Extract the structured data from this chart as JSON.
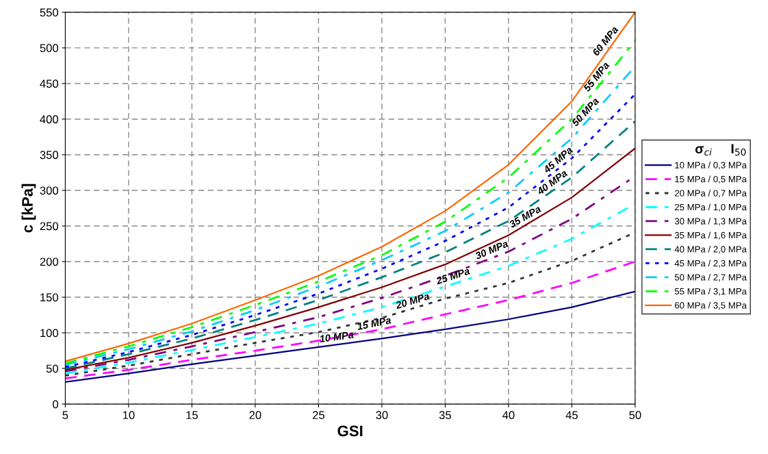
{
  "chart_data": {
    "type": "line",
    "xlabel": "GSI",
    "ylabel": "c [kPa]",
    "legend_title": "σ$_{ci}$     I$_{50}$",
    "x": [
      5,
      10,
      15,
      20,
      25,
      30,
      35,
      40,
      45,
      50
    ],
    "xlim": [
      5,
      50
    ],
    "xticks": [
      5,
      10,
      15,
      20,
      25,
      30,
      35,
      40,
      45,
      50
    ],
    "ylim": [
      0,
      550
    ],
    "yticks": [
      0,
      50,
      100,
      150,
      200,
      250,
      300,
      350,
      400,
      450,
      500,
      550
    ],
    "grid": true,
    "legend": "right",
    "marker": "none",
    "series": [
      {
        "name": "10 MPa / 0,3 MPa",
        "color": "#000080",
        "line_style": "solid",
        "values": [
          31,
          43,
          56,
          68,
          80,
          92,
          105,
          119,
          136,
          158
        ]
      },
      {
        "name": "15 MPa / 0,5 MPa",
        "color": "#ff00ff",
        "line_style": "dashed",
        "values": [
          36,
          48,
          62,
          75,
          89,
          105,
          126,
          146,
          170,
          200
        ]
      },
      {
        "name": "20 MPa / 0,7 MPa",
        "color": "#333333",
        "line_style": "dotted",
        "values": [
          40,
          54,
          70,
          86,
          101,
          121,
          148,
          170,
          201,
          241
        ]
      },
      {
        "name": "25 MPa / 1,0 MPa",
        "color": "#00ffff",
        "line_style": "dashdot",
        "values": [
          43,
          58,
          76,
          94,
          113,
          136,
          165,
          194,
          232,
          281
        ]
      },
      {
        "name": "30 MPa / 1,3 MPa",
        "color": "#800080",
        "line_style": "dashdot",
        "values": [
          46,
          62,
          81,
          101,
          122,
          149,
          180,
          214,
          260,
          320
        ]
      },
      {
        "name": "35 MPa / 1,6 MPa",
        "color": "#800000",
        "line_style": "solid",
        "values": [
          48,
          65,
          86,
          110,
          136,
          164,
          196,
          237,
          290,
          359
        ]
      },
      {
        "name": "40 MPa / 2,0 MPa",
        "color": "#008080",
        "line_style": "dashed",
        "values": [
          50,
          70,
          92,
          118,
          146,
          178,
          213,
          257,
          318,
          397
        ]
      },
      {
        "name": "45 MPa / 2,3 MPa",
        "color": "#0000ff",
        "line_style": "dotted",
        "values": [
          52,
          73,
          97,
          125,
          155,
          190,
          229,
          276,
          345,
          435
        ]
      },
      {
        "name": "50 MPa / 2,7 MPa",
        "color": "#00ccff",
        "line_style": "dashdot",
        "values": [
          55,
          77,
          102,
          132,
          165,
          202,
          243,
          297,
          373,
          474
        ]
      },
      {
        "name": "55 MPa / 3,1 MPa",
        "color": "#00ff00",
        "line_style": "dashdot",
        "values": [
          57,
          81,
          108,
          139,
          172,
          209,
          256,
          318,
          400,
          510
        ]
      },
      {
        "name": "60 MPa / 3,5 MPa",
        "color": "#ff6600",
        "line_style": "solid",
        "values": [
          60,
          85,
          113,
          146,
          180,
          221,
          271,
          336,
          425,
          550
        ]
      }
    ],
    "annotations": [
      {
        "text": "10 MPa",
        "x": 26.5,
        "y": 84
      },
      {
        "text": "15 MPa",
        "x": 29.5,
        "y": 103
      },
      {
        "text": "20 MPa",
        "x": 32.6,
        "y": 135
      },
      {
        "text": "25 MPa",
        "x": 35.8,
        "y": 170
      },
      {
        "text": "30 MPa",
        "x": 38.9,
        "y": 207
      },
      {
        "text": "35 MPa",
        "x": 41.6,
        "y": 254
      },
      {
        "text": "40 MPa",
        "x": 43.8,
        "y": 303
      },
      {
        "text": "45 MPa",
        "x": 44.3,
        "y": 335
      },
      {
        "text": "50 MPa",
        "x": 46.5,
        "y": 403
      },
      {
        "text": "55 MPa",
        "x": 47.4,
        "y": 453
      },
      {
        "text": "60 MPa",
        "x": 48.1,
        "y": 503
      }
    ]
  }
}
